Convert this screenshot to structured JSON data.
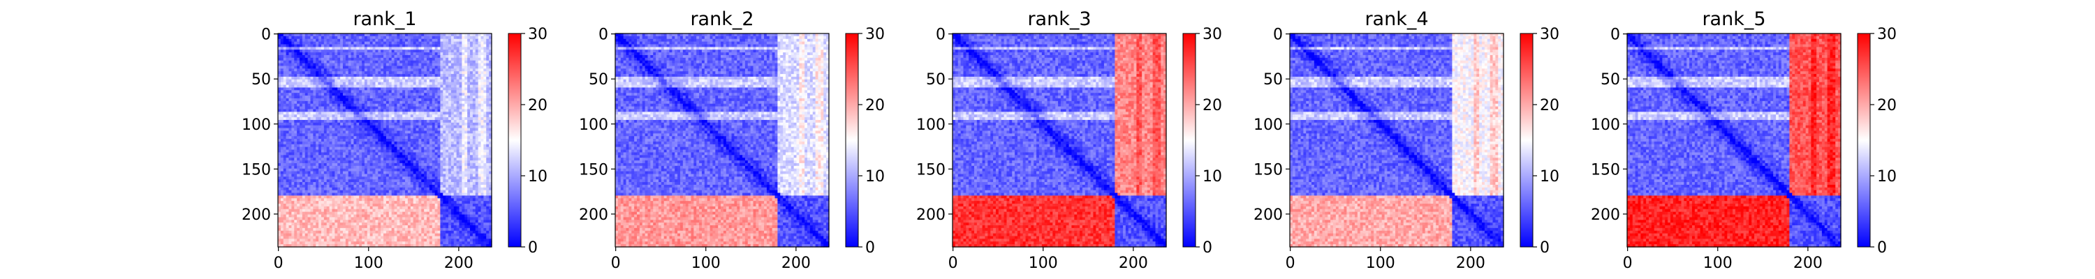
{
  "colormap": {
    "name": "bwr",
    "low": "#0000ff",
    "mid": "#ffffff",
    "high": "#ff0000"
  },
  "chart_data": [
    {
      "type": "heatmap",
      "title": "rank_1",
      "matrix_size": 237,
      "xticks": [
        0,
        100,
        200
      ],
      "yticks": [
        0,
        50,
        100,
        150,
        200
      ],
      "colorbar": {
        "min": 0,
        "max": 30,
        "ticks": [
          0,
          10,
          20,
          30
        ]
      },
      "domains": [
        [
          0,
          178
        ],
        [
          178,
          237
        ]
      ],
      "block_values": {
        "domain1_intra": 6,
        "domain2_intra": 5,
        "inter_upper": 11,
        "inter_lower": 19
      },
      "x": [
        0,
        237
      ],
      "y": [
        0,
        237
      ],
      "xlabel": "",
      "ylabel": ""
    },
    {
      "type": "heatmap",
      "title": "rank_2",
      "matrix_size": 237,
      "xticks": [
        0,
        100,
        200
      ],
      "yticks": [
        0,
        50,
        100,
        150,
        200
      ],
      "colorbar": {
        "min": 0,
        "max": 30,
        "ticks": [
          0,
          10,
          20,
          30
        ]
      },
      "domains": [
        [
          0,
          178
        ],
        [
          178,
          237
        ]
      ],
      "block_values": {
        "domain1_intra": 6,
        "domain2_intra": 5,
        "inter_upper": 13,
        "inter_lower": 21
      },
      "x": [
        0,
        237
      ],
      "y": [
        0,
        237
      ],
      "xlabel": "",
      "ylabel": ""
    },
    {
      "type": "heatmap",
      "title": "rank_3",
      "matrix_size": 237,
      "xticks": [
        0,
        100,
        200
      ],
      "yticks": [
        0,
        50,
        100,
        150,
        200
      ],
      "colorbar": {
        "min": 0,
        "max": 30,
        "ticks": [
          0,
          10,
          20,
          30
        ]
      },
      "domains": [
        [
          0,
          178
        ],
        [
          178,
          237
        ]
      ],
      "block_values": {
        "domain1_intra": 6,
        "domain2_intra": 5,
        "inter_upper": 22,
        "inter_lower": 27
      },
      "x": [
        0,
        237
      ],
      "y": [
        0,
        237
      ],
      "xlabel": "",
      "ylabel": ""
    },
    {
      "type": "heatmap",
      "title": "rank_4",
      "matrix_size": 237,
      "xticks": [
        0,
        100,
        200
      ],
      "yticks": [
        0,
        50,
        100,
        150,
        200
      ],
      "colorbar": {
        "min": 0,
        "max": 30,
        "ticks": [
          0,
          10,
          20,
          30
        ]
      },
      "domains": [
        [
          0,
          178
        ],
        [
          178,
          237
        ]
      ],
      "block_values": {
        "domain1_intra": 6,
        "domain2_intra": 5,
        "inter_upper": 15,
        "inter_lower": 20
      },
      "x": [
        0,
        237
      ],
      "y": [
        0,
        237
      ],
      "xlabel": "",
      "ylabel": ""
    },
    {
      "type": "heatmap",
      "title": "rank_5",
      "matrix_size": 237,
      "xticks": [
        0,
        100,
        200
      ],
      "yticks": [
        0,
        50,
        100,
        150,
        200
      ],
      "colorbar": {
        "min": 0,
        "max": 30,
        "ticks": [
          0,
          10,
          20,
          30
        ]
      },
      "domains": [
        [
          0,
          178
        ],
        [
          178,
          237
        ]
      ],
      "block_values": {
        "domain1_intra": 6,
        "domain2_intra": 5,
        "inter_upper": 25,
        "inter_lower": 28
      },
      "x": [
        0,
        237
      ],
      "y": [
        0,
        237
      ],
      "xlabel": "",
      "ylabel": ""
    }
  ]
}
